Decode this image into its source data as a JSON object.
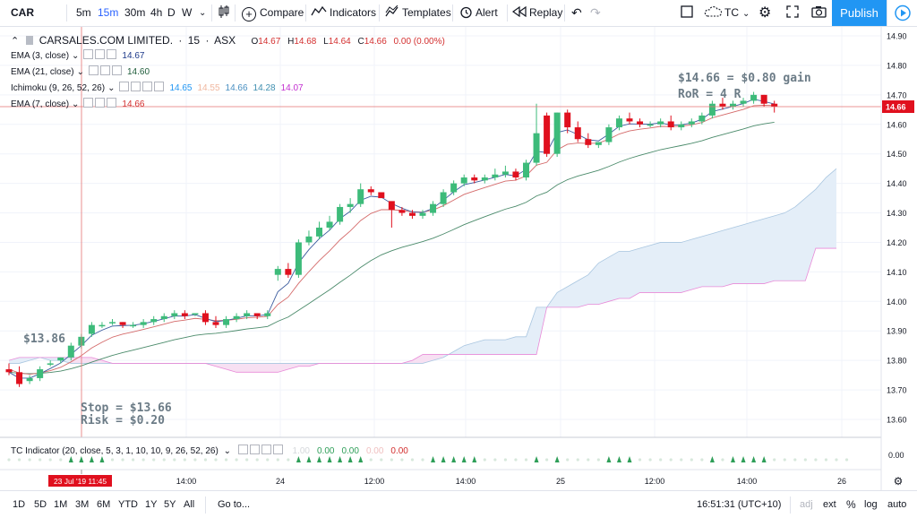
{
  "toolbar": {
    "symbol": "CAR",
    "intervals": [
      "5m",
      "15m",
      "30m",
      "4h",
      "D",
      "W"
    ],
    "active_interval": "15m",
    "compare_label": "Compare",
    "indicators_label": "Indicators",
    "templates_label": "Templates",
    "alert_label": "Alert",
    "replay_label": "Replay",
    "layout_name": "TC",
    "publish_label": "Publish"
  },
  "legend": {
    "title": "CARSALES.COM LIMITED.",
    "interval": "15",
    "exchange": "ASX",
    "o_label": "O",
    "o_val": "14.67",
    "h_label": "H",
    "h_val": "14.68",
    "l_label": "L",
    "l_val": "14.64",
    "c_label": "C",
    "c_val": "14.66",
    "change": "0.00 (0.00%)",
    "indicators": [
      {
        "name": "EMA (3, close)",
        "values": [
          "14.67"
        ],
        "colors": [
          "#1e3a8a"
        ]
      },
      {
        "name": "EMA (21, close)",
        "values": [
          "14.60"
        ],
        "colors": [
          "#1e5c3a"
        ]
      },
      {
        "name": "Ichimoku (9, 26, 52, 26)",
        "values": [
          "14.65",
          "14.55",
          "14.66",
          "14.28",
          "14.07"
        ],
        "colors": [
          "#2196f3",
          "#f0b8a0",
          "#4a90c2",
          "#3f8fb0",
          "#c22ed0"
        ]
      },
      {
        "name": "EMA (7, close)",
        "values": [
          "14.66"
        ],
        "colors": [
          "#d32f2f"
        ]
      }
    ]
  },
  "annotations": {
    "entry": "$13.86",
    "stop": "Stop = $13.66",
    "risk": "Risk = $0.20",
    "gain": "$14.66 = $0.80 gain",
    "ror": "RoR = 4 R"
  },
  "price_axis": {
    "labels": [
      "14.90",
      "14.80",
      "14.70",
      "14.60",
      "14.50",
      "14.40",
      "14.30",
      "14.20",
      "14.10",
      "14.00",
      "13.90",
      "13.80",
      "13.70",
      "13.60"
    ],
    "current_price": "14.66",
    "indicator_value": "0.00"
  },
  "time_axis": {
    "labels": [
      "14:00",
      "24",
      "12:00",
      "14:00",
      "25",
      "12:00",
      "14:00",
      "26"
    ],
    "cursor_label": "23 Jul '19  11:45"
  },
  "tc_indicator": {
    "name": "TC Indicator (20, close, 5, 3, 1, 10, 10, 9, 26, 52, 26)",
    "values": [
      "1.00",
      "0.00",
      "0.00",
      "0.00",
      "0.00"
    ],
    "colors": [
      "#d5d8dc",
      "#2e9e58",
      "#2e9e58",
      "#f0c0c0",
      "#d32f2f"
    ]
  },
  "bottom": {
    "ranges": [
      "1D",
      "5D",
      "1M",
      "3M",
      "6M",
      "YTD",
      "1Y",
      "5Y",
      "All"
    ],
    "goto_label": "Go to...",
    "clock": "16:51:31 (UTC+10)",
    "adj": "adj",
    "ext": "ext",
    "percent": "%",
    "log": "log",
    "auto": "auto"
  },
  "colors": {
    "up": "#3dbb7a",
    "down": "#e0101e",
    "ema3": "#3b5b9e",
    "ema7": "#d46a6a",
    "ema21": "#4a8a6a",
    "cloud_fill": "#e4eef8",
    "cloud_fill_bear": "#f7e0f2",
    "span_a": "#a9c6e0",
    "span_b": "#e88ad8",
    "price_tag": "#e0101e"
  },
  "chart_data": {
    "type": "candlestick",
    "x_start": "23 Jul '19 11:45",
    "interval": "15m",
    "candles": [
      [
        13.77,
        13.79,
        13.75,
        13.76
      ],
      [
        13.76,
        13.78,
        13.71,
        13.72
      ],
      [
        13.73,
        13.75,
        13.72,
        13.74
      ],
      [
        13.74,
        13.78,
        13.73,
        13.77
      ],
      [
        13.79,
        13.8,
        13.78,
        13.79
      ],
      [
        13.8,
        13.81,
        13.79,
        13.81
      ],
      [
        13.81,
        13.86,
        13.8,
        13.85
      ],
      [
        13.85,
        13.89,
        13.84,
        13.88
      ],
      [
        13.89,
        13.93,
        13.88,
        13.92
      ],
      [
        13.92,
        13.93,
        13.91,
        13.92
      ],
      [
        13.93,
        13.94,
        13.92,
        13.93
      ],
      [
        13.93,
        13.93,
        13.91,
        13.92
      ],
      [
        13.92,
        13.93,
        13.91,
        13.92
      ],
      [
        13.92,
        13.94,
        13.91,
        13.93
      ],
      [
        13.93,
        13.95,
        13.92,
        13.94
      ],
      [
        13.94,
        13.96,
        13.93,
        13.95
      ],
      [
        13.95,
        13.97,
        13.94,
        13.96
      ],
      [
        13.96,
        13.97,
        13.94,
        13.95
      ],
      [
        13.96,
        13.96,
        13.95,
        13.96
      ],
      [
        13.96,
        13.97,
        13.92,
        13.93
      ],
      [
        13.93,
        13.95,
        13.91,
        13.92
      ],
      [
        13.92,
        13.95,
        13.91,
        13.94
      ],
      [
        13.94,
        13.96,
        13.93,
        13.95
      ],
      [
        13.95,
        13.97,
        13.94,
        13.96
      ],
      [
        13.96,
        13.96,
        13.94,
        13.95
      ],
      [
        13.95,
        13.97,
        13.94,
        13.96
      ],
      [
        14.09,
        14.12,
        14.07,
        14.11
      ],
      [
        14.11,
        14.13,
        14.08,
        14.09
      ],
      [
        14.09,
        14.21,
        14.08,
        14.2
      ],
      [
        14.2,
        14.24,
        14.19,
        14.22
      ],
      [
        14.22,
        14.27,
        14.21,
        14.25
      ],
      [
        14.25,
        14.29,
        14.24,
        14.27
      ],
      [
        14.27,
        14.33,
        14.26,
        14.32
      ],
      [
        14.32,
        14.35,
        14.3,
        14.33
      ],
      [
        14.33,
        14.4,
        14.32,
        14.38
      ],
      [
        14.38,
        14.39,
        14.36,
        14.37
      ],
      [
        14.37,
        14.36,
        14.35,
        14.35
      ],
      [
        14.34,
        14.33,
        14.25,
        14.31
      ],
      [
        14.31,
        14.32,
        14.29,
        14.3
      ],
      [
        14.3,
        14.31,
        14.28,
        14.29
      ],
      [
        14.29,
        14.31,
        14.28,
        14.3
      ],
      [
        14.3,
        14.34,
        14.29,
        14.33
      ],
      [
        14.33,
        14.38,
        14.32,
        14.37
      ],
      [
        14.37,
        14.41,
        14.36,
        14.4
      ],
      [
        14.4,
        14.43,
        14.39,
        14.42
      ],
      [
        14.42,
        14.43,
        14.4,
        14.41
      ],
      [
        14.41,
        14.43,
        14.4,
        14.42
      ],
      [
        14.42,
        14.45,
        14.41,
        14.43
      ],
      [
        14.43,
        14.46,
        14.42,
        14.44
      ],
      [
        14.44,
        14.45,
        14.41,
        14.42
      ],
      [
        14.42,
        14.48,
        14.41,
        14.47
      ],
      [
        14.47,
        14.67,
        14.46,
        14.57
      ],
      [
        14.63,
        14.64,
        14.49,
        14.5
      ],
      [
        14.5,
        14.64,
        14.49,
        14.64
      ],
      [
        14.64,
        14.65,
        14.57,
        14.59
      ],
      [
        14.59,
        14.61,
        14.54,
        14.55
      ],
      [
        14.55,
        14.57,
        14.52,
        14.53
      ],
      [
        14.53,
        14.54,
        14.52,
        14.54
      ],
      [
        14.54,
        14.6,
        14.53,
        14.59
      ],
      [
        14.59,
        14.63,
        14.58,
        14.62
      ],
      [
        14.62,
        14.64,
        14.6,
        14.61
      ],
      [
        14.61,
        14.62,
        14.59,
        14.6
      ],
      [
        14.6,
        14.61,
        14.59,
        14.6
      ],
      [
        14.6,
        14.62,
        14.59,
        14.61
      ],
      [
        14.61,
        14.63,
        14.58,
        14.59
      ],
      [
        14.59,
        14.61,
        14.58,
        14.6
      ],
      [
        14.6,
        14.62,
        14.59,
        14.61
      ],
      [
        14.61,
        14.64,
        14.6,
        14.63
      ],
      [
        14.63,
        14.68,
        14.62,
        14.67
      ],
      [
        14.67,
        14.69,
        14.65,
        14.66
      ],
      [
        14.66,
        14.68,
        14.65,
        14.67
      ],
      [
        14.67,
        14.69,
        14.66,
        14.68
      ],
      [
        14.68,
        14.71,
        14.67,
        14.7
      ],
      [
        14.7,
        14.7,
        14.66,
        14.67
      ],
      [
        14.67,
        14.68,
        14.64,
        14.66
      ]
    ],
    "cloud": {
      "span_a": [
        13.79,
        13.79,
        13.8,
        13.81,
        13.8,
        13.8,
        13.79,
        13.79,
        13.79,
        13.79,
        13.79,
        13.79,
        13.79,
        13.79,
        13.79,
        13.79,
        13.79,
        13.79,
        13.79,
        13.79,
        13.79,
        13.79,
        13.79,
        13.79,
        13.79,
        13.79,
        13.79,
        13.79,
        13.79,
        13.79,
        13.79,
        13.79,
        13.79,
        13.79,
        13.79,
        13.79,
        13.79,
        13.79,
        13.79,
        13.79,
        13.79,
        13.8,
        13.81,
        13.83,
        13.85,
        13.86,
        13.87,
        13.87,
        13.87,
        13.88,
        13.88,
        13.98,
        13.98,
        14.03,
        14.05,
        14.07,
        14.09,
        14.13,
        14.15,
        14.17,
        14.17,
        14.18,
        14.19,
        14.2,
        14.2,
        14.2,
        14.21,
        14.22,
        14.23,
        14.24,
        14.25,
        14.26,
        14.27,
        14.28,
        14.29,
        14.3,
        14.32,
        14.35,
        14.38,
        14.42,
        14.45,
        14.46
      ],
      "span_b": [
        13.8,
        13.81,
        13.81,
        13.81,
        13.81,
        13.81,
        13.81,
        13.81,
        13.81,
        13.8,
        13.79,
        13.79,
        13.79,
        13.79,
        13.79,
        13.79,
        13.79,
        13.79,
        13.79,
        13.79,
        13.78,
        13.77,
        13.76,
        13.76,
        13.76,
        13.76,
        13.76,
        13.77,
        13.78,
        13.78,
        13.79,
        13.79,
        13.79,
        13.79,
        13.79,
        13.79,
        13.79,
        13.79,
        13.79,
        13.8,
        13.82,
        13.82,
        13.82,
        13.82,
        13.82,
        13.82,
        13.82,
        13.82,
        13.82,
        13.82,
        13.82,
        13.82,
        13.98,
        13.98,
        13.98,
        13.98,
        13.99,
        13.99,
        14.0,
        14.01,
        14.01,
        14.03,
        14.03,
        14.03,
        14.03,
        14.03,
        14.04,
        14.05,
        14.05,
        14.05,
        14.06,
        14.06,
        14.06,
        14.06,
        14.07,
        14.07,
        14.07,
        14.07,
        14.18,
        14.18,
        14.18
      ]
    },
    "ylim": [
      13.55,
      14.93
    ]
  }
}
